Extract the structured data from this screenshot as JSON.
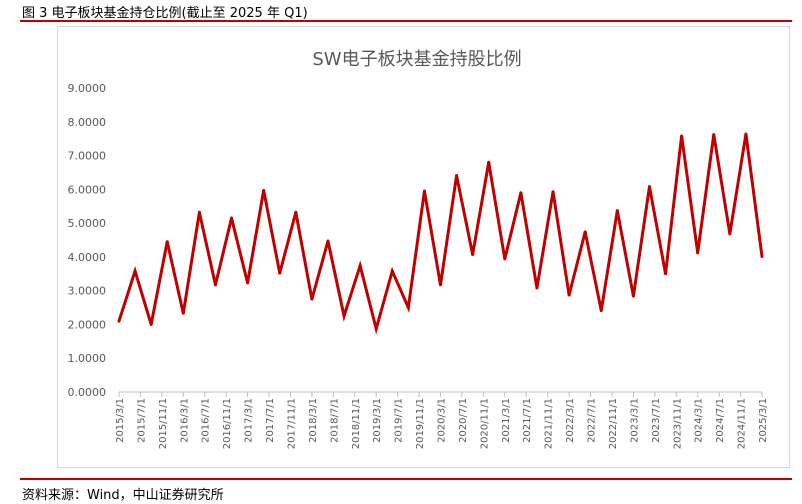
{
  "figure_title": "图 3 电子板块基金持仓比例(截止至 2025 年 Q1)",
  "source": "资料来源：Wind，中山证券研究所",
  "colors": {
    "series": "#c00000",
    "rule": "#c00000",
    "axis": "#bfbfbf",
    "text": "#595959"
  },
  "chart_data": {
    "type": "line",
    "title": "SW电子板块基金持股比例",
    "xlabel": "",
    "ylabel": "",
    "ylim": [
      0,
      9
    ],
    "y_ticks": [
      "0.0000",
      "1.0000",
      "2.0000",
      "3.0000",
      "4.0000",
      "5.0000",
      "6.0000",
      "7.0000",
      "8.0000",
      "9.0000"
    ],
    "grid": false,
    "legend": "none",
    "categories": [
      "2015/3/1",
      "2015/7/1",
      "2015/11/1",
      "2016/3/1",
      "2016/7/1",
      "2016/11/1",
      "2017/3/1",
      "2017/7/1",
      "2017/11/1",
      "2018/3/1",
      "2018/7/1",
      "2018/11/1",
      "2019/3/1",
      "2019/7/1",
      "2019/11/1",
      "2020/3/1",
      "2020/7/1",
      "2020/11/1",
      "2021/3/1",
      "2021/7/1",
      "2021/11/1",
      "2022/3/1",
      "2022/7/1",
      "2022/11/1",
      "2023/3/1",
      "2023/7/1",
      "2023/11/1",
      "2024/3/1",
      "2024/7/1",
      "2024/11/1",
      "2025/3/1"
    ],
    "x": [
      "2015/3/1",
      "2015/6/1",
      "2015/9/1",
      "2015/12/1",
      "2016/3/1",
      "2016/6/1",
      "2016/9/1",
      "2016/12/1",
      "2017/3/1",
      "2017/6/1",
      "2017/9/1",
      "2017/12/1",
      "2018/3/1",
      "2018/6/1",
      "2018/9/1",
      "2018/12/1",
      "2019/3/1",
      "2019/6/1",
      "2019/9/1",
      "2019/12/1",
      "2020/3/1",
      "2020/6/1",
      "2020/9/1",
      "2020/12/1",
      "2021/3/1",
      "2021/6/1",
      "2021/9/1",
      "2021/12/1",
      "2022/3/1",
      "2022/6/1",
      "2022/9/1",
      "2022/12/1",
      "2023/3/1",
      "2023/6/1",
      "2023/9/1",
      "2023/12/1",
      "2024/3/1",
      "2024/6/1",
      "2024/9/1",
      "2024/12/1",
      "2025/3/1"
    ],
    "series": [
      {
        "values": [
          2.1,
          3.58,
          2.0,
          4.45,
          2.33,
          5.32,
          3.17,
          5.15,
          3.23,
          5.97,
          3.52,
          5.32,
          2.75,
          4.47,
          2.25,
          3.74,
          1.87,
          3.58,
          2.5,
          5.95,
          3.17,
          6.41,
          4.07,
          6.8,
          3.94,
          5.9,
          3.08,
          5.93,
          2.87,
          4.74,
          2.41,
          5.37,
          2.84,
          6.08,
          3.5,
          7.58,
          4.12,
          7.62,
          4.68,
          7.64,
          4.01
        ]
      }
    ]
  }
}
